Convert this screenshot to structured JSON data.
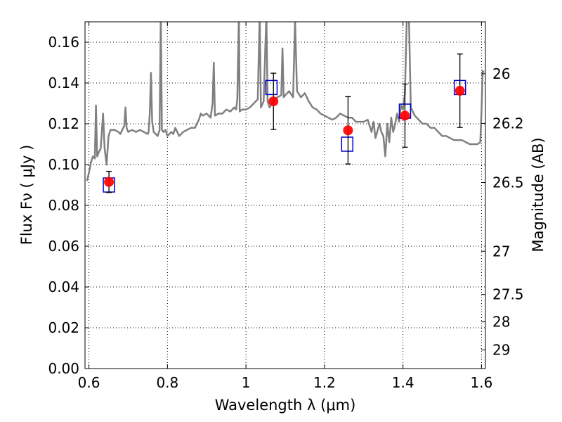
{
  "chart_data": {
    "type": "scatter",
    "title": "",
    "xlabel": "Wavelength  λ (μm)",
    "ylabel": "Flux  Fν  ( μJy )",
    "y2label": "Magnitude (AB)",
    "xlim": [
      0.59,
      1.61
    ],
    "ylim": [
      0.0,
      0.17
    ],
    "grid": true,
    "x_ticks": [
      0.6,
      0.8,
      1.0,
      1.2,
      1.4,
      1.6
    ],
    "x_tick_labels": [
      "0.6",
      "0.8",
      "1",
      "1.2",
      "1.4",
      "1.6"
    ],
    "y_ticks": [
      0.0,
      0.02,
      0.04,
      0.06,
      0.08,
      0.1,
      0.12,
      0.14,
      0.16
    ],
    "y_tick_labels": [
      "0.00",
      "0.02",
      "0.04",
      "0.06",
      "0.08",
      "0.10",
      "0.12",
      "0.14",
      "0.16"
    ],
    "mag_ticks": [
      {
        "label": "26",
        "flux": 0.1445
      },
      {
        "label": "26.2",
        "flux": 0.1202
      },
      {
        "label": "26.5",
        "flux": 0.0912
      },
      {
        "label": "27",
        "flux": 0.0575
      },
      {
        "label": "27.5",
        "flux": 0.0363
      },
      {
        "label": "28",
        "flux": 0.0229
      },
      {
        "label": "29",
        "flux": 0.0091
      }
    ],
    "series": [
      {
        "kind": "points",
        "marker": "circle",
        "color": "#ff0000",
        "points": [
          {
            "x": 0.651,
            "y": 0.0915,
            "err": 0.0052
          },
          {
            "x": 1.07,
            "y": 0.131,
            "err": 0.0138
          },
          {
            "x": 1.26,
            "y": 0.1168,
            "err": 0.0165
          },
          {
            "x": 1.405,
            "y": 0.124,
            "err": 0.0155
          },
          {
            "x": 1.545,
            "y": 0.1362,
            "err": 0.018
          }
        ]
      },
      {
        "kind": "points",
        "marker": "open-square",
        "color": "#0000cc",
        "points": [
          {
            "x": 0.651,
            "y": 0.09
          },
          {
            "x": 1.065,
            "y": 0.1378
          },
          {
            "x": 1.258,
            "y": 0.11
          },
          {
            "x": 1.405,
            "y": 0.1262
          },
          {
            "x": 1.545,
            "y": 0.1378
          }
        ]
      },
      {
        "kind": "line",
        "color": "#808080",
        "points": [
          [
            0.595,
            0.092
          ],
          [
            0.6,
            0.096
          ],
          [
            0.605,
            0.101
          ],
          [
            0.61,
            0.104
          ],
          [
            0.615,
            0.103
          ],
          [
            0.618,
            0.129
          ],
          [
            0.621,
            0.104
          ],
          [
            0.625,
            0.106
          ],
          [
            0.63,
            0.108
          ],
          [
            0.636,
            0.125
          ],
          [
            0.64,
            0.108
          ],
          [
            0.645,
            0.1
          ],
          [
            0.65,
            0.114
          ],
          [
            0.655,
            0.117
          ],
          [
            0.665,
            0.117
          ],
          [
            0.675,
            0.116
          ],
          [
            0.68,
            0.115
          ],
          [
            0.685,
            0.117
          ],
          [
            0.69,
            0.119
          ],
          [
            0.693,
            0.128
          ],
          [
            0.696,
            0.118
          ],
          [
            0.7,
            0.116
          ],
          [
            0.71,
            0.117
          ],
          [
            0.72,
            0.116
          ],
          [
            0.73,
            0.117
          ],
          [
            0.74,
            0.116
          ],
          [
            0.75,
            0.115
          ],
          [
            0.752,
            0.116
          ],
          [
            0.755,
            0.125
          ],
          [
            0.758,
            0.145
          ],
          [
            0.761,
            0.121
          ],
          [
            0.765,
            0.116
          ],
          [
            0.775,
            0.114
          ],
          [
            0.78,
            0.117
          ],
          [
            0.783,
            0.174
          ],
          [
            0.786,
            0.117
          ],
          [
            0.79,
            0.116
          ],
          [
            0.795,
            0.117
          ],
          [
            0.8,
            0.114
          ],
          [
            0.81,
            0.116
          ],
          [
            0.815,
            0.115
          ],
          [
            0.82,
            0.118
          ],
          [
            0.825,
            0.116
          ],
          [
            0.83,
            0.114
          ],
          [
            0.84,
            0.116
          ],
          [
            0.85,
            0.117
          ],
          [
            0.86,
            0.118
          ],
          [
            0.87,
            0.118
          ],
          [
            0.88,
            0.122
          ],
          [
            0.885,
            0.125
          ],
          [
            0.89,
            0.124
          ],
          [
            0.9,
            0.125
          ],
          [
            0.91,
            0.123
          ],
          [
            0.915,
            0.13
          ],
          [
            0.918,
            0.15
          ],
          [
            0.921,
            0.124
          ],
          [
            0.93,
            0.125
          ],
          [
            0.94,
            0.125
          ],
          [
            0.95,
            0.127
          ],
          [
            0.96,
            0.126
          ],
          [
            0.97,
            0.128
          ],
          [
            0.975,
            0.127
          ],
          [
            0.978,
            0.132
          ],
          [
            0.982,
            0.174
          ],
          [
            0.984,
            0.126
          ],
          [
            0.99,
            0.127
          ],
          [
            1.0,
            0.127
          ],
          [
            1.01,
            0.128
          ],
          [
            1.02,
            0.13
          ],
          [
            1.03,
            0.132
          ],
          [
            1.035,
            0.174
          ],
          [
            1.038,
            0.128
          ],
          [
            1.045,
            0.131
          ],
          [
            1.052,
            0.174
          ],
          [
            1.055,
            0.131
          ],
          [
            1.06,
            0.128
          ],
          [
            1.07,
            0.131
          ],
          [
            1.08,
            0.133
          ],
          [
            1.09,
            0.134
          ],
          [
            1.093,
            0.157
          ],
          [
            1.096,
            0.133
          ],
          [
            1.1,
            0.134
          ],
          [
            1.11,
            0.136
          ],
          [
            1.12,
            0.133
          ],
          [
            1.125,
            0.171
          ],
          [
            1.13,
            0.136
          ],
          [
            1.14,
            0.133
          ],
          [
            1.15,
            0.135
          ],
          [
            1.16,
            0.131
          ],
          [
            1.17,
            0.128
          ],
          [
            1.18,
            0.127
          ],
          [
            1.19,
            0.125
          ],
          [
            1.2,
            0.124
          ],
          [
            1.21,
            0.123
          ],
          [
            1.22,
            0.122
          ],
          [
            1.23,
            0.123
          ],
          [
            1.24,
            0.125
          ],
          [
            1.25,
            0.124
          ],
          [
            1.26,
            0.123
          ],
          [
            1.27,
            0.123
          ],
          [
            1.28,
            0.121
          ],
          [
            1.29,
            0.121
          ],
          [
            1.3,
            0.121
          ],
          [
            1.31,
            0.122
          ],
          [
            1.32,
            0.116
          ],
          [
            1.325,
            0.121
          ],
          [
            1.33,
            0.113
          ],
          [
            1.34,
            0.12
          ],
          [
            1.345,
            0.116
          ],
          [
            1.35,
            0.114
          ],
          [
            1.355,
            0.104
          ],
          [
            1.36,
            0.12
          ],
          [
            1.365,
            0.111
          ],
          [
            1.37,
            0.123
          ],
          [
            1.375,
            0.116
          ],
          [
            1.38,
            0.12
          ],
          [
            1.385,
            0.125
          ],
          [
            1.39,
            0.121
          ],
          [
            1.395,
            0.129
          ],
          [
            1.4,
            0.127
          ],
          [
            1.405,
            0.135
          ],
          [
            1.41,
            0.174
          ],
          [
            1.415,
            0.174
          ],
          [
            1.42,
            0.128
          ],
          [
            1.43,
            0.124
          ],
          [
            1.44,
            0.122
          ],
          [
            1.45,
            0.12
          ],
          [
            1.46,
            0.12
          ],
          [
            1.47,
            0.118
          ],
          [
            1.48,
            0.118
          ],
          [
            1.49,
            0.116
          ],
          [
            1.5,
            0.114
          ],
          [
            1.51,
            0.114
          ],
          [
            1.52,
            0.113
          ],
          [
            1.53,
            0.112
          ],
          [
            1.54,
            0.112
          ],
          [
            1.55,
            0.112
          ],
          [
            1.56,
            0.111
          ],
          [
            1.57,
            0.11
          ],
          [
            1.58,
            0.11
          ],
          [
            1.59,
            0.11
          ],
          [
            1.597,
            0.111
          ],
          [
            1.6,
            0.126
          ],
          [
            1.603,
            0.146
          ],
          [
            1.606,
            0.145
          ]
        ]
      }
    ]
  }
}
